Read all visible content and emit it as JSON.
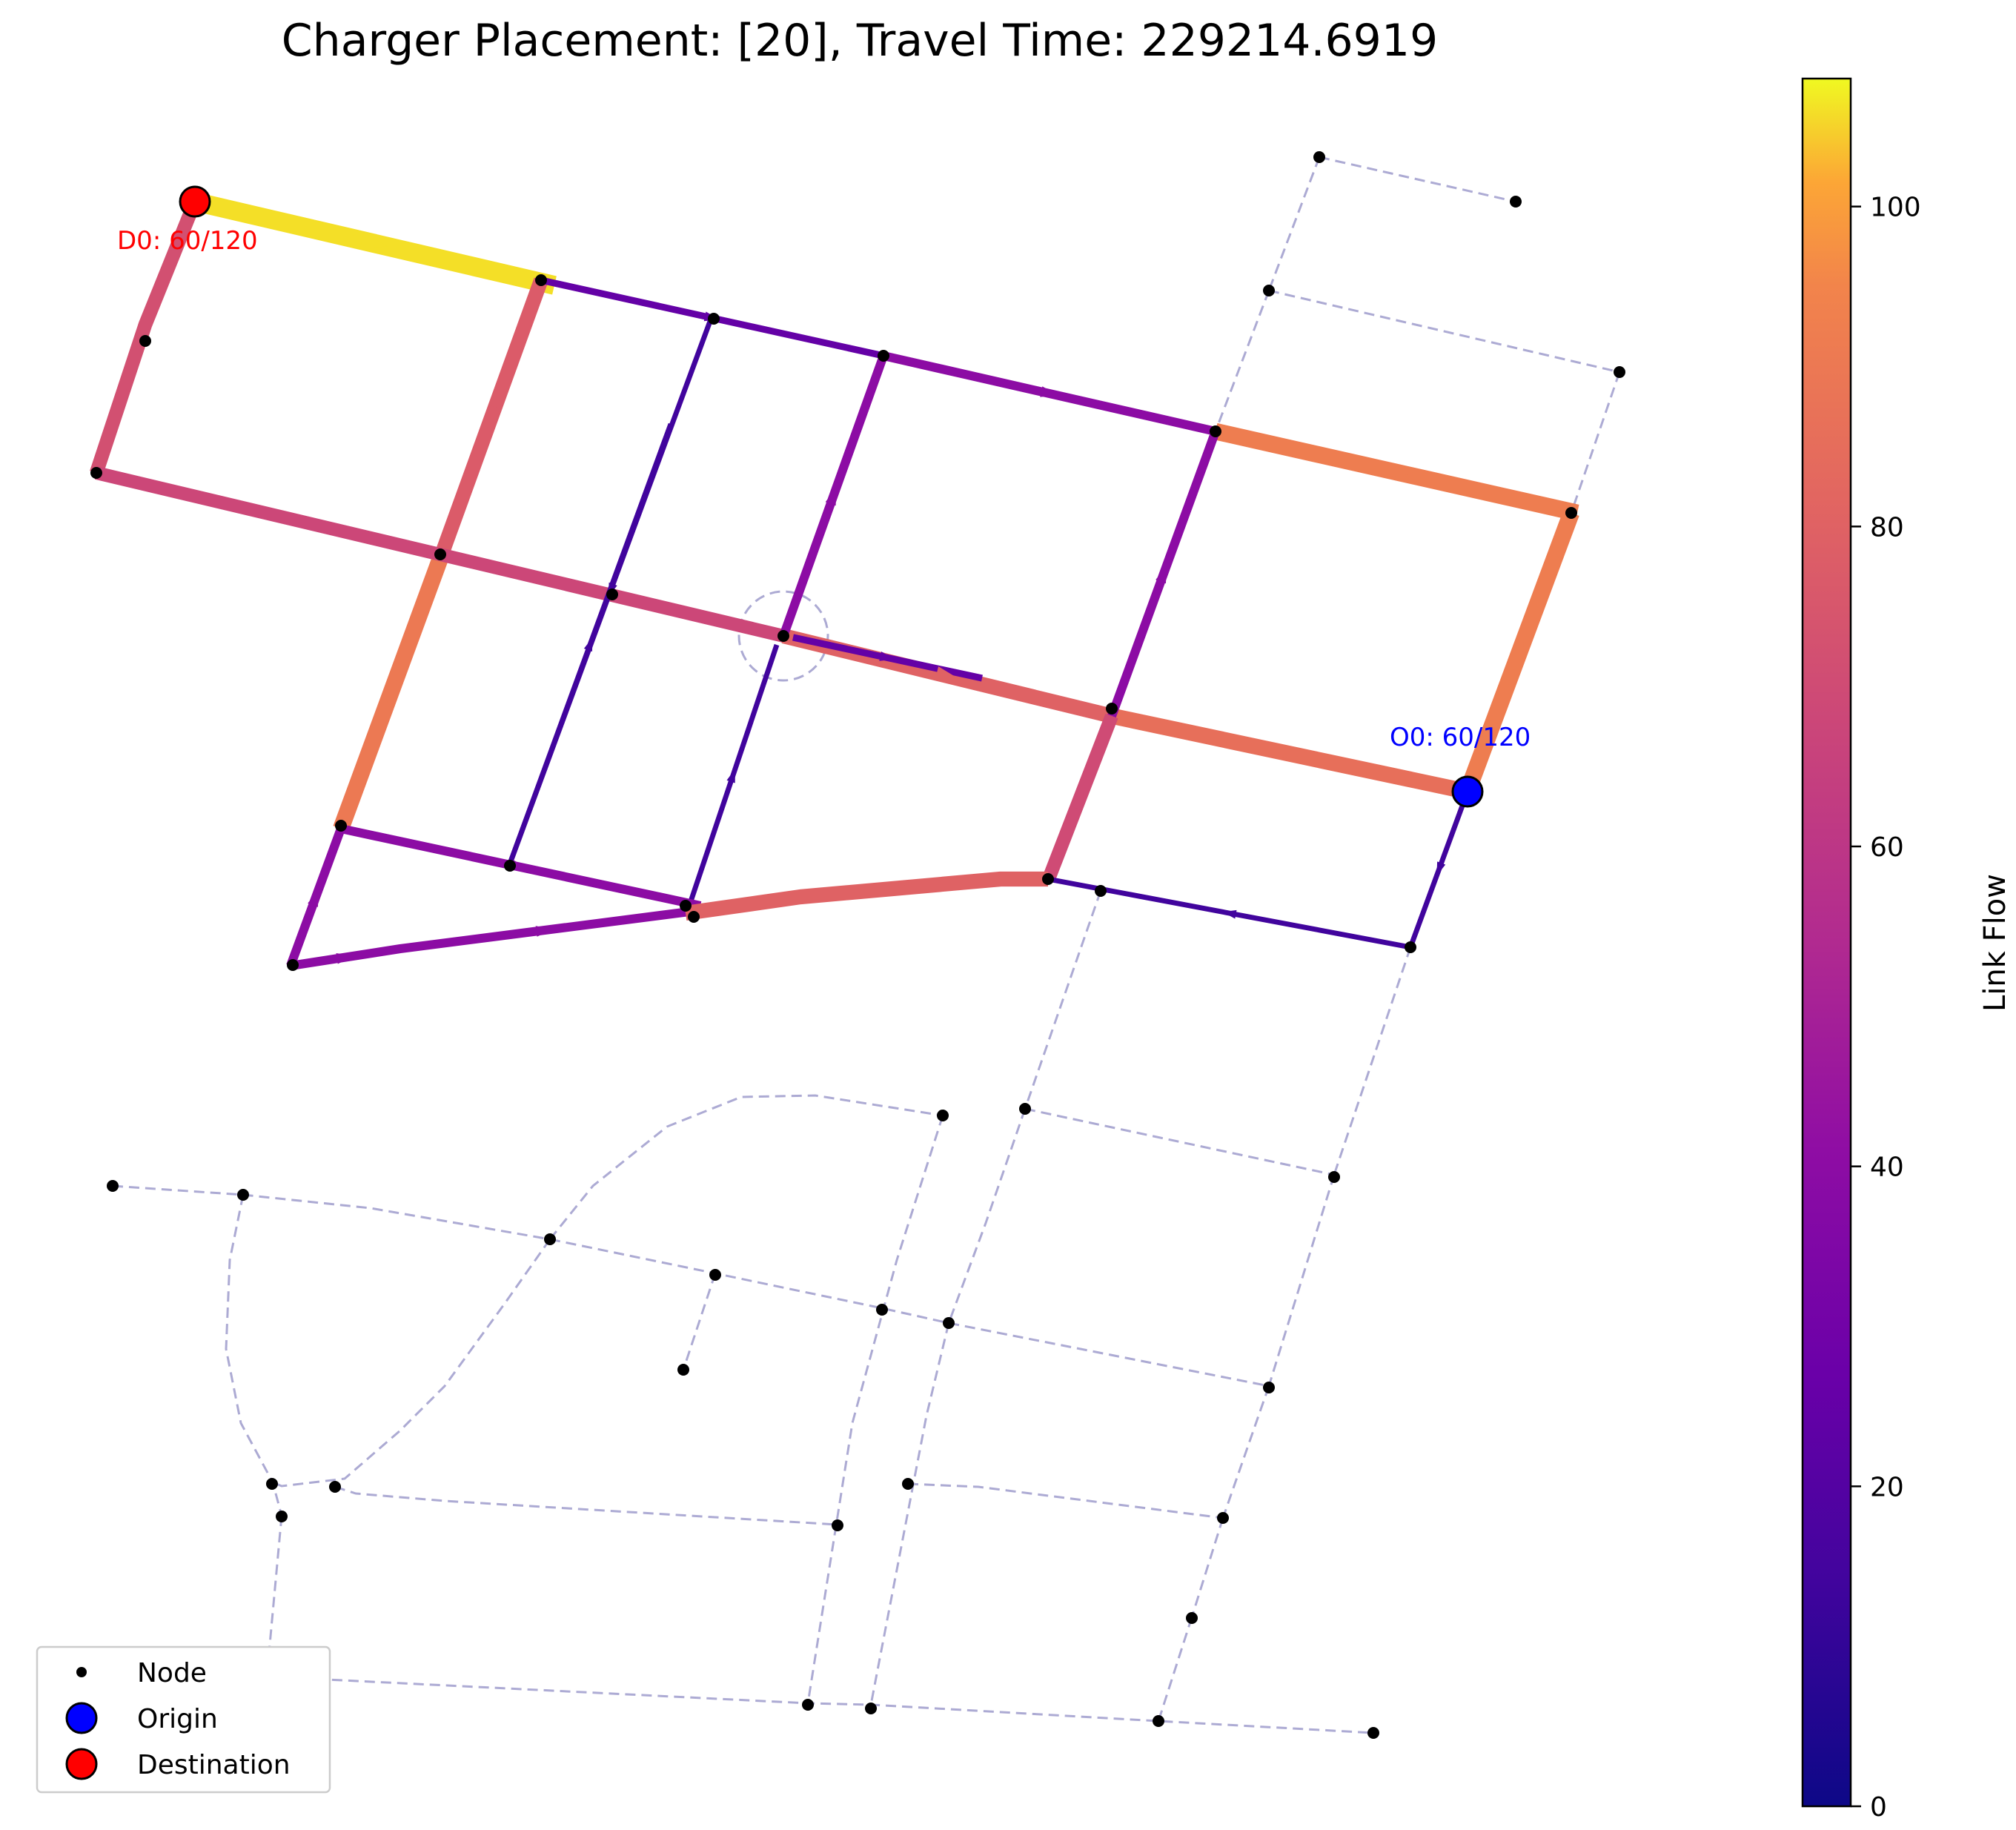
{
  "title": "Charger Placement: [20], Travel Time: 229214.6919",
  "origin": {
    "label": "O0: 60/120",
    "color": "#0000ff"
  },
  "destination": {
    "label": "D0: 60/120",
    "color": "#ff0000"
  },
  "colorbar": {
    "label": "Link Flow",
    "ticks": [
      "0",
      "20",
      "40",
      "60",
      "80",
      "100"
    ],
    "colormap": "plasma",
    "range": [
      0,
      108
    ]
  },
  "legend": {
    "items": [
      {
        "label": "Node",
        "marker": "small-black-dot"
      },
      {
        "label": "Origin",
        "marker": "blue-circle"
      },
      {
        "label": "Destination",
        "marker": "red-circle"
      }
    ]
  },
  "chart_data": {
    "type": "network-flow",
    "colormap": "plasma",
    "flow_range": [
      0,
      108
    ],
    "flow_links": [
      {
        "flow": 106,
        "desc": "top-left link into destination"
      },
      {
        "flow": 72,
        "desc": "left vertical into destination"
      },
      {
        "flow": 77,
        "desc": "vertical from top-left junction"
      },
      {
        "flow": 90,
        "desc": "lower vertical toward left junction"
      },
      {
        "flow": 68,
        "desc": "main horizontal (left)"
      },
      {
        "flow": 80,
        "desc": "main horizontal (center)"
      },
      {
        "flow": 86,
        "desc": "main horizontal (right, from origin)"
      },
      {
        "flow": 92,
        "desc": "origin vertical (right)"
      },
      {
        "flow": 92,
        "desc": "top-right horizontal"
      },
      {
        "flow": 40,
        "desc": "right diagonal up"
      },
      {
        "flow": 70,
        "desc": "right diagonal lower"
      },
      {
        "flow": 40,
        "desc": "top horizontal (right)"
      },
      {
        "flow": 25,
        "desc": "top horizontal (left)"
      },
      {
        "flow": 40,
        "desc": "center diagonal up"
      },
      {
        "flow": 14,
        "desc": "diagonal down-left"
      },
      {
        "flow": 14,
        "desc": "diagonal up-right"
      },
      {
        "flow": 14,
        "desc": "diagonal up to center loop"
      },
      {
        "flow": 25,
        "desc": "short arrow right from center"
      },
      {
        "flow": 40,
        "desc": "lower left horizontal"
      },
      {
        "flow": 40,
        "desc": "bottom-left horizontal"
      },
      {
        "flow": 40,
        "desc": "bottom-left diagonal"
      },
      {
        "flow": 80,
        "desc": "lower center horizontal"
      },
      {
        "flow": 14,
        "desc": "origin down-left"
      },
      {
        "flow": 14,
        "desc": "bottom right horizontal (leftward)"
      }
    ]
  }
}
